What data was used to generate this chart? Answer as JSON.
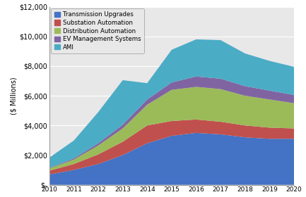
{
  "years": [
    2010,
    2011,
    2012,
    2013,
    2014,
    2015,
    2016,
    2017,
    2018,
    2019,
    2020
  ],
  "transmission_upgrades": [
    700,
    1000,
    1400,
    2000,
    2800,
    3300,
    3500,
    3400,
    3200,
    3100,
    3100
  ],
  "substation_automation": [
    250,
    400,
    650,
    900,
    1200,
    1000,
    900,
    850,
    800,
    750,
    700
  ],
  "distribution_automation": [
    150,
    300,
    600,
    900,
    1400,
    2100,
    2200,
    2200,
    2000,
    1900,
    1700
  ],
  "ev_management": [
    30,
    80,
    150,
    250,
    350,
    500,
    700,
    700,
    650,
    600,
    550
  ],
  "ami": [
    700,
    1200,
    2100,
    3000,
    1100,
    2200,
    2500,
    2600,
    2200,
    2000,
    1900
  ],
  "colors": {
    "transmission_upgrades": "#4472C4",
    "substation_automation": "#C0504D",
    "distribution_automation": "#9BBB59",
    "ev_management": "#8064A2",
    "ami": "#4BACC6"
  },
  "legend_labels": [
    "Transmission Upgrades",
    "Substation Automation",
    "Distribution Automation",
    "EV Management Systems",
    "AMI"
  ],
  "ylabel": "($ Millions)",
  "ylim": [
    0,
    12000
  ],
  "yticks": [
    0,
    2000,
    4000,
    6000,
    8000,
    10000,
    12000
  ],
  "ytick_labels": [
    "$-",
    "$2,000",
    "$4,000",
    "$6,000",
    "$8,000",
    "$10,000",
    "$12,000"
  ],
  "plot_bg_color": "#E8E8E8",
  "fig_bg_color": "#FFFFFF",
  "legend_bg_color": "#E8E8E8",
  "grid_color": "#FFFFFF",
  "border_color": "#999999"
}
